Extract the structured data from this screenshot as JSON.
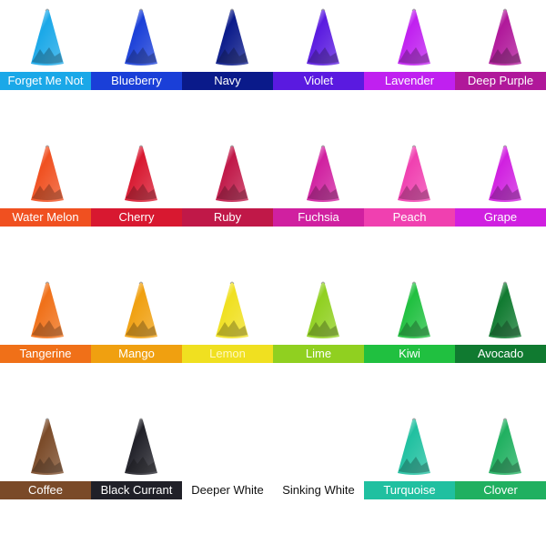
{
  "rows": [
    [
      {
        "label": "Forget Me Not",
        "color": "#1aa8e8",
        "text": "#ffffff"
      },
      {
        "label": "Blueberry",
        "color": "#1a3fd8",
        "text": "#ffffff"
      },
      {
        "label": "Navy",
        "color": "#0a1a8a",
        "text": "#ffffff"
      },
      {
        "label": "Violet",
        "color": "#5a1ae0",
        "text": "#ffffff"
      },
      {
        "label": "Lavender",
        "color": "#c020f0",
        "text": "#ffffff"
      },
      {
        "label": "Deep Purple",
        "color": "#b0189a",
        "text": "#ffffff"
      }
    ],
    [
      {
        "label": "Water Melon",
        "color": "#f05020",
        "text": "#ffffff"
      },
      {
        "label": "Cherry",
        "color": "#d81830",
        "text": "#ffffff"
      },
      {
        "label": "Ruby",
        "color": "#c01848",
        "text": "#ffffff"
      },
      {
        "label": "Fuchsia",
        "color": "#d020a0",
        "text": "#ffffff"
      },
      {
        "label": "Peach",
        "color": "#f040b0",
        "text": "#ffffff"
      },
      {
        "label": "Grape",
        "color": "#d020e0",
        "text": "#ffffff"
      }
    ],
    [
      {
        "label": "Tangerine",
        "color": "#f07018",
        "text": "#ffffff"
      },
      {
        "label": "Mango",
        "color": "#f0a010",
        "text": "#ffffff"
      },
      {
        "label": "Lemon",
        "color": "#f0e020",
        "text": "#fff8c0"
      },
      {
        "label": "Lime",
        "color": "#90d020",
        "text": "#ffffff"
      },
      {
        "label": "Kiwi",
        "color": "#20c040",
        "text": "#ffffff"
      },
      {
        "label": "Avocado",
        "color": "#107a30",
        "text": "#ffffff"
      }
    ],
    [
      {
        "label": "Coffee",
        "color": "#7a4a28",
        "text": "#ffffff"
      },
      {
        "label": "Black Currant",
        "color": "#202028",
        "text": "#ffffff"
      },
      {
        "label": "Deeper White",
        "color": "#ffffff",
        "text": "#111111"
      },
      {
        "label": "Sinking White",
        "color": "#ffffff",
        "text": "#111111"
      },
      {
        "label": "Turquoise",
        "color": "#20c0a0",
        "text": "#ffffff"
      },
      {
        "label": "Clover",
        "color": "#20b060",
        "text": "#ffffff"
      }
    ]
  ]
}
